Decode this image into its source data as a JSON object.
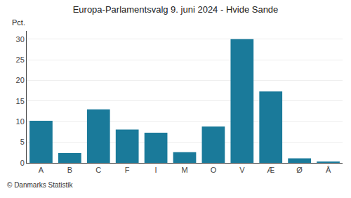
{
  "chart_data": {
    "type": "bar",
    "title": "Europa-Parlamentsvalg 9. juni 2024 - Hvide Sande",
    "categories": [
      "A",
      "B",
      "C",
      "F",
      "I",
      "M",
      "O",
      "V",
      "Æ",
      "Ø",
      "Å"
    ],
    "values": [
      10.2,
      2.4,
      13.0,
      8.1,
      7.3,
      2.6,
      8.8,
      30.0,
      17.3,
      1.1,
      0.3
    ],
    "color": "#1a7a9a",
    "ylabel": "Pct.",
    "annotations": [
      "© Danmarks Statistik"
    ],
    "ylim": [
      0,
      32
    ],
    "yticks": [
      0,
      5,
      10,
      15,
      20,
      25,
      30
    ],
    "grid": true
  }
}
